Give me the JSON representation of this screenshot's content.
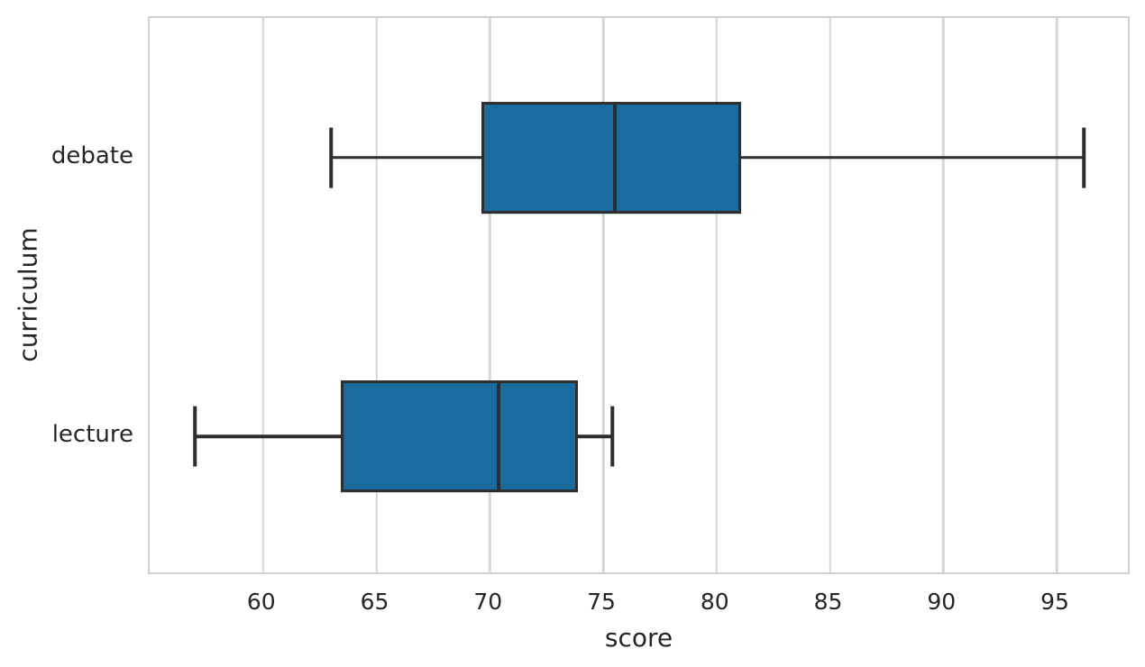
{
  "figure": {
    "background": "#ffffff"
  },
  "chart_data": {
    "type": "boxplot",
    "orientation": "horizontal",
    "title": "",
    "xlabel": "score",
    "ylabel": "curriculum",
    "xlim": [
      55.0,
      98.3
    ],
    "x_ticks": [
      "60",
      "65",
      "70",
      "75",
      "80",
      "85",
      "90",
      "95"
    ],
    "x_tick_values": [
      60,
      65,
      70,
      75,
      80,
      85,
      90,
      95
    ],
    "grid": "vertical-only",
    "legend": "none",
    "categories": [
      "debate",
      "lecture"
    ],
    "series": [
      {
        "category": "debate",
        "whisker_low": 63.0,
        "q1": 69.7,
        "median": 75.5,
        "q3": 81.0,
        "whisker_high": 96.2
      },
      {
        "category": "lecture",
        "whisker_low": 57.0,
        "q1": 63.5,
        "median": 70.4,
        "q3": 73.8,
        "whisker_high": 75.4
      }
    ],
    "colors": {
      "box_fill": "#1a6c9e",
      "box_edge": "#2e2e2e",
      "median": "#2e2e2e",
      "whisker": "#2e2e2e",
      "grid": "#d6d6d6",
      "spine": "#d0d0d0",
      "text": "#262626"
    }
  }
}
